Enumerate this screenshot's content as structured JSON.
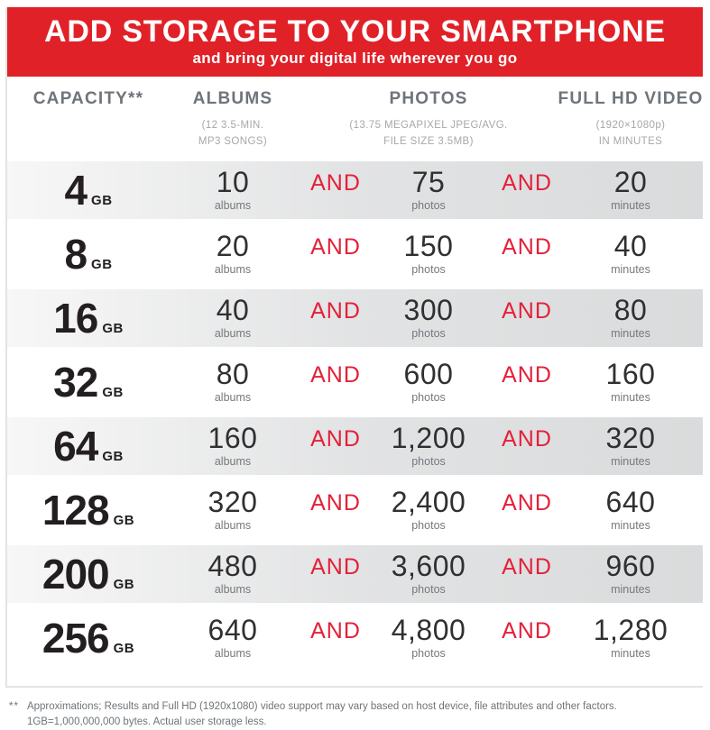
{
  "banner": {
    "title": "ADD STORAGE TO YOUR SMARTPHONE",
    "subtitle": "and bring your digital life wherever you go"
  },
  "header": {
    "capacity": {
      "label": "CAPACITY**"
    },
    "albums": {
      "label": "ALBUMS",
      "sub1": "(12 3.5-MIN.",
      "sub2": "MP3 SONGS)"
    },
    "photos": {
      "label": "PHOTOS",
      "sub1": "(13.75 MEGAPIXEL JPEG/AVG.",
      "sub2": "FILE SIZE 3.5MB)"
    },
    "video": {
      "label": "FULL HD VIDEO",
      "sub1": "(1920×1080p)",
      "sub2": "IN MINUTES"
    }
  },
  "labels": {
    "gb": "GB",
    "and": "AND",
    "albums": "albums",
    "photos": "photos",
    "minutes": "minutes"
  },
  "rows": [
    {
      "capacity": "4",
      "albums": "10",
      "photos": "75",
      "minutes": "20"
    },
    {
      "capacity": "8",
      "albums": "20",
      "photos": "150",
      "minutes": "40"
    },
    {
      "capacity": "16",
      "albums": "40",
      "photos": "300",
      "minutes": "80"
    },
    {
      "capacity": "32",
      "albums": "80",
      "photos": "600",
      "minutes": "160"
    },
    {
      "capacity": "64",
      "albums": "160",
      "photos": "1,200",
      "minutes": "320"
    },
    {
      "capacity": "128",
      "albums": "320",
      "photos": "2,400",
      "minutes": "640"
    },
    {
      "capacity": "200",
      "albums": "480",
      "photos": "3,600",
      "minutes": "960"
    },
    {
      "capacity": "256",
      "albums": "640",
      "photos": "4,800",
      "minutes": "1,280"
    }
  ],
  "footnote": {
    "marker": "**",
    "line1": "Approximations; Results and Full HD (1920x1080) video support may vary based on host device, file attributes and other factors.",
    "line2": "1GB=1,000,000,000 bytes. Actual user storage less."
  },
  "colors": {
    "banner_red": "#e02127",
    "and_red": "#e4203a",
    "row_shade_gray": "#d9dbdc",
    "header_gray": "#6f747a",
    "number_black": "#231f20"
  },
  "chart_data": {
    "type": "table",
    "title": "ADD STORAGE TO YOUR SMARTPHONE",
    "subtitle": "and bring your digital life wherever you go",
    "columns": [
      "CAPACITY (GB)",
      "ALBUMS (12 3.5-min. MP3 songs)",
      "PHOTOS (13.75 megapixel JPEG / avg. file size 3.5MB)",
      "FULL HD VIDEO (1920×1080p) in minutes"
    ],
    "rows": [
      [
        4,
        10,
        75,
        20
      ],
      [
        8,
        20,
        150,
        40
      ],
      [
        16,
        40,
        300,
        80
      ],
      [
        32,
        80,
        600,
        160
      ],
      [
        64,
        160,
        1200,
        320
      ],
      [
        128,
        320,
        2400,
        640
      ],
      [
        200,
        480,
        3600,
        960
      ],
      [
        256,
        640,
        4800,
        1280
      ]
    ],
    "notes": "Row shading alternates gray/white; AND separators between value columns"
  }
}
